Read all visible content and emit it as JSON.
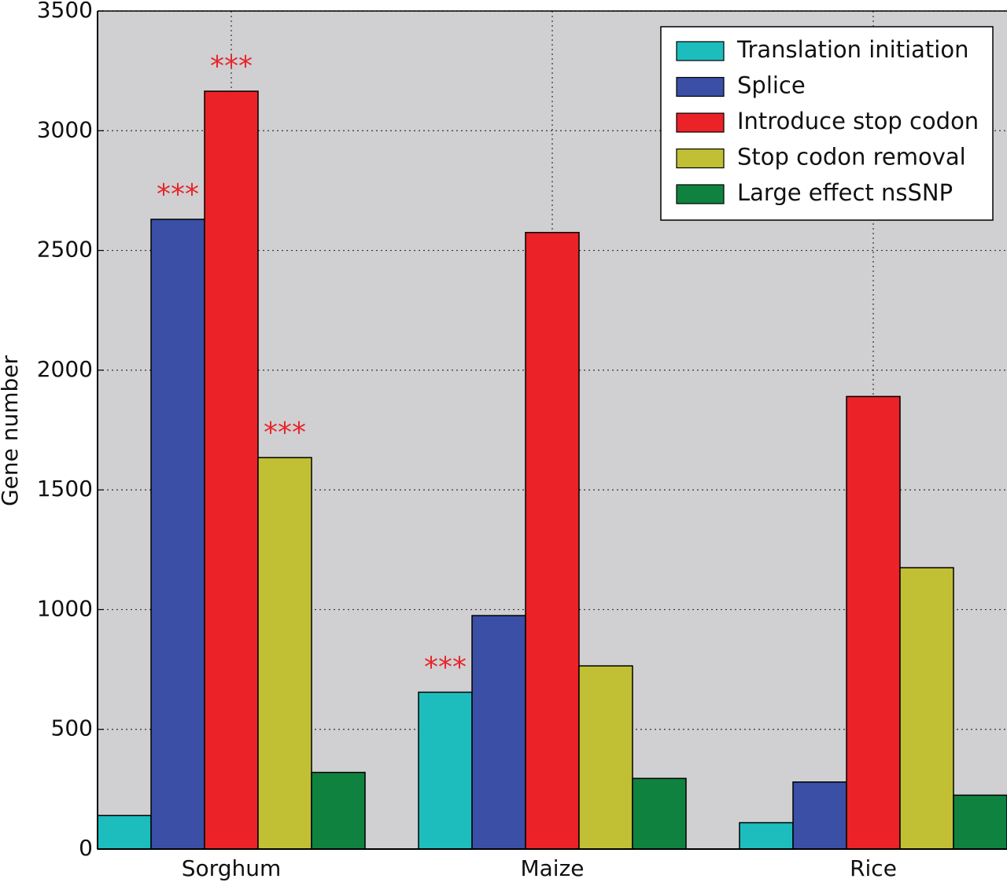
{
  "chart_data": {
    "type": "bar",
    "y_label": "Gene number",
    "categories": [
      "Sorghum",
      "Maize",
      "Rice"
    ],
    "series": [
      {
        "name": "Translation initiation",
        "color": "#1dbdbd",
        "values": [
          140,
          655,
          110
        ],
        "annotations": [
          null,
          "***",
          null
        ]
      },
      {
        "name": "Splice",
        "color": "#3a4fa5",
        "values": [
          2630,
          975,
          280
        ],
        "annotations": [
          "***",
          null,
          null
        ]
      },
      {
        "name": "Introduce stop codon",
        "color": "#eb2227",
        "values": [
          3165,
          2575,
          1890
        ],
        "annotations": [
          "***",
          null,
          null
        ]
      },
      {
        "name": "Stop codon removal",
        "color": "#c1c035",
        "values": [
          1635,
          765,
          1175
        ],
        "annotations": [
          "***",
          null,
          null
        ]
      },
      {
        "name": "Large effect nsSNP",
        "color": "#0f8240",
        "values": [
          320,
          295,
          225
        ],
        "annotations": [
          null,
          null,
          null
        ]
      }
    ],
    "annotation_color": "#e8262b",
    "ylim": [
      0,
      3500
    ],
    "yticks": [
      0,
      500,
      1000,
      1500,
      2000,
      2500,
      3000,
      3500
    ],
    "grid": true,
    "legend": "upper-right"
  }
}
